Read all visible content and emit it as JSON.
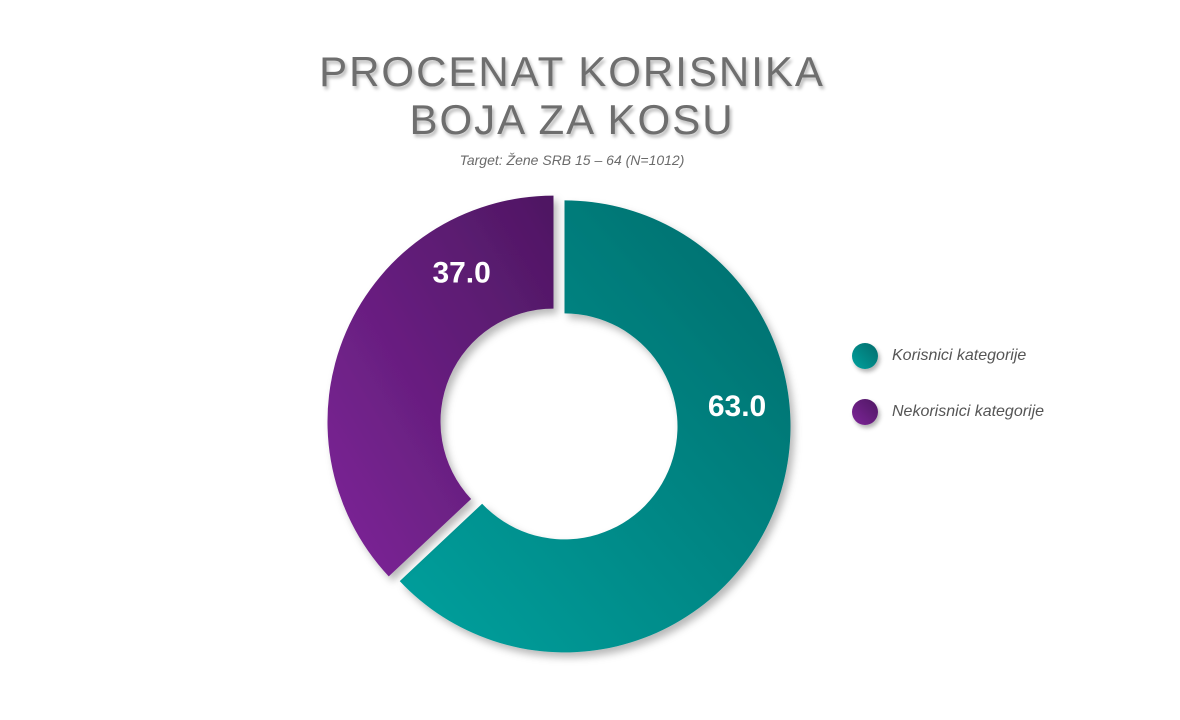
{
  "chart_data": {
    "type": "pie",
    "title_lines": [
      "PROCENAT KORISNIKA",
      "BOJA ZA KOSU"
    ],
    "subtitle": "Target: Žene SRB 15 – 64 (N=1012)",
    "slices": [
      {
        "name": "Korisnici kategorije",
        "value": 63.0,
        "label": "63.0",
        "color_light": "#00a19e",
        "color_dark": "#036c6b"
      },
      {
        "name": "Nekorisnici kategorije",
        "value": 37.0,
        "label": "37.0",
        "color_light": "#7e2599",
        "color_dark": "#4e1762"
      }
    ],
    "donut": true,
    "legend_position": "right"
  }
}
